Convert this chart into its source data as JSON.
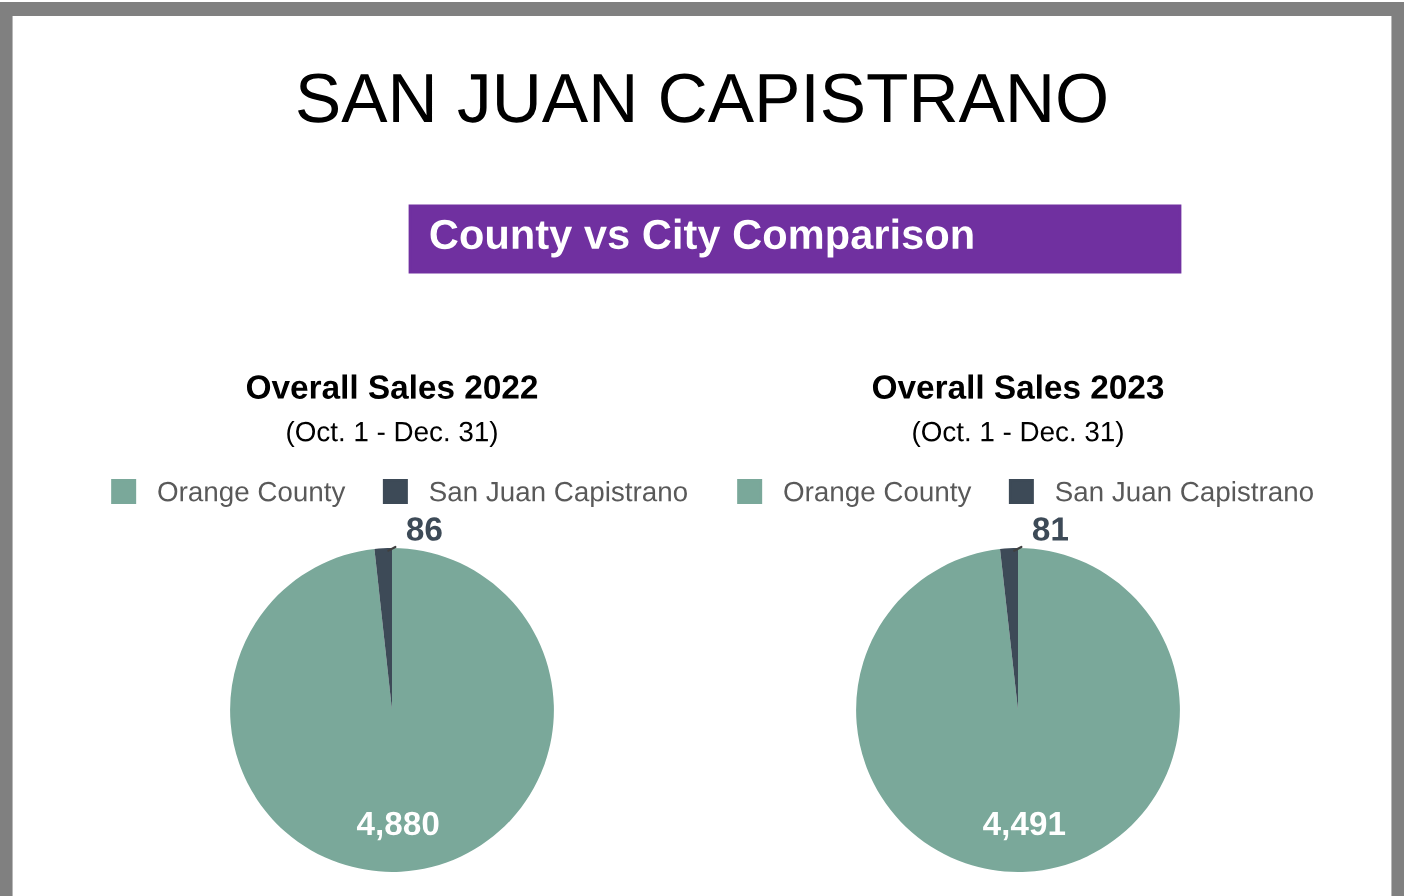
{
  "chart_data": [
    {
      "type": "other",
      "title": "SAN JUAN CAPISTRANO",
      "subtitle": "County vs City Comparison"
    },
    {
      "type": "pie",
      "title": "Overall Sales 2022",
      "subtitle": "(Oct. 1 - Dec. 31)",
      "categories": [
        "Orange County",
        "San Juan Capistrano"
      ],
      "values": [
        4880,
        86
      ],
      "colors": [
        "#7aa89a",
        "#3d4a57"
      ],
      "value_labels": [
        "4,880",
        "86"
      ],
      "legend": "top"
    },
    {
      "type": "pie",
      "title": "Overall Sales 2023",
      "subtitle": "(Oct. 1 - Dec. 31)",
      "categories": [
        "Orange County",
        "San Juan Capistrano"
      ],
      "values": [
        4491,
        81
      ],
      "colors": [
        "#7aa89a",
        "#3d4a57"
      ],
      "value_labels": [
        "4,491",
        "81"
      ],
      "legend": "top"
    }
  ]
}
